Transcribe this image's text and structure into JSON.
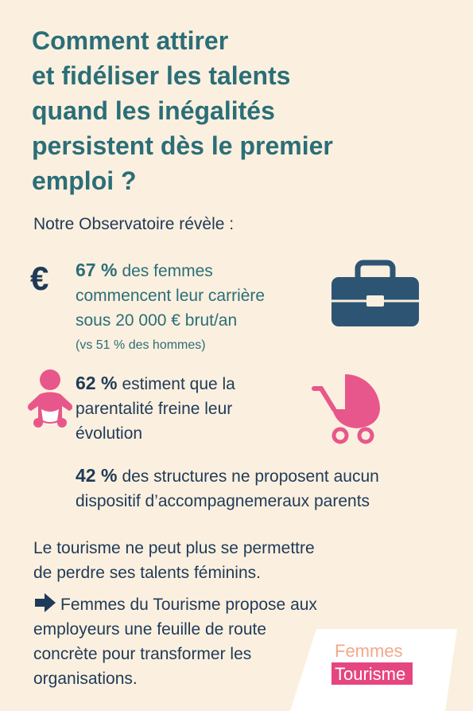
{
  "title_lines": [
    "Comment attirer",
    "et fidéliser les talents",
    "quand les inégalités",
    "persistent dès le premier",
    "emploi ?"
  ],
  "intro": "Notre Observatoire révèle :",
  "stats": [
    {
      "icon": "€",
      "value": "67 %",
      "lines": [
        "des femmes",
        "commencent leur carrière",
        "sous 20 000 € brut/an"
      ],
      "note": "(vs 51 % des hommes)"
    },
    {
      "value": "62 %",
      "lines": [
        "estiment que la",
        "parentalité freine leur",
        "évolution"
      ]
    },
    {
      "value": "42 %",
      "lines": [
        "des structures ne proposent aucun",
        "dispositif d’accompagnemeraux parents"
      ]
    }
  ],
  "conclusion_lines": [
    "Le tourisme ne peut plus se permettre",
    "de perdre ses talents féminins."
  ],
  "call_to_action_lines": [
    "Femmes du Tourisme propose aux",
    "employeurs une feuille de route",
    "concrète pour transformer les",
    "organisations."
  ],
  "logo": {
    "line1": "Femmes",
    "line2": "Tourisme"
  }
}
